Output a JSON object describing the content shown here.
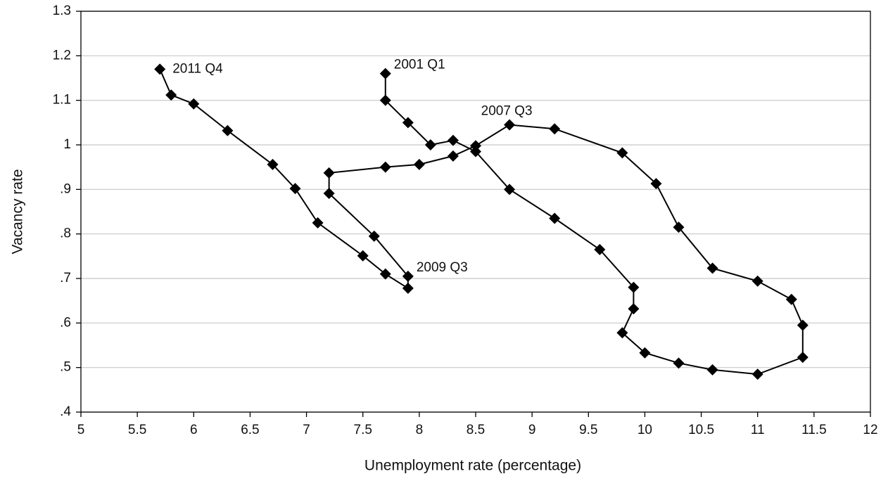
{
  "chart_data": {
    "type": "line",
    "x_label": "Unemployment rate (percentage)",
    "y_label": "Vacancy rate",
    "x": [
      7.7,
      7.7,
      7.9,
      8.1,
      8.3,
      8.5,
      8.8,
      9.2,
      9.6,
      9.9,
      9.9,
      9.8,
      10,
      10.3,
      10.6,
      11,
      11.4,
      11.4,
      11.3,
      11,
      10.6,
      10.3,
      10.1,
      9.8,
      9.2,
      8.8,
      8.5,
      8.3,
      8,
      7.7,
      7.2,
      7.2,
      7.6,
      7.9,
      7.9,
      7.7,
      7.5,
      7.1,
      6.9,
      6.7,
      6.3,
      6,
      5.8,
      5.7
    ],
    "values": [
      1.16,
      1.1,
      1.05,
      1.0,
      1.01,
      0.985,
      0.9,
      0.835,
      0.765,
      0.68,
      0.632,
      0.578,
      0.533,
      0.51,
      0.495,
      0.485,
      0.523,
      0.595,
      0.653,
      0.694,
      0.723,
      0.815,
      0.913,
      0.982,
      1.036,
      1.045,
      0.998,
      0.975,
      0.956,
      0.95,
      0.937,
      0.891,
      0.795,
      0.705,
      0.678,
      0.71,
      0.751,
      0.825,
      0.902,
      0.956,
      1.032,
      1.092,
      1.112,
      1.17
    ],
    "point_labels": [
      "2001 Q1",
      null,
      null,
      null,
      null,
      null,
      null,
      null,
      null,
      null,
      null,
      null,
      null,
      null,
      null,
      null,
      null,
      null,
      null,
      null,
      null,
      null,
      null,
      null,
      null,
      "2007 Q3",
      null,
      null,
      null,
      null,
      null,
      null,
      null,
      "2009 Q3",
      null,
      null,
      null,
      null,
      null,
      null,
      null,
      null,
      null,
      "2011 Q4"
    ],
    "color": "#000000",
    "xlim": [
      5,
      12
    ],
    "xticks": [
      5,
      5.5,
      6,
      6.5,
      7,
      7.5,
      8,
      8.5,
      9,
      9.5,
      10,
      10.5,
      11,
      11.5,
      12
    ],
    "ylim": [
      0.4,
      1.3
    ],
    "yticks": [
      {
        "value": 0.4,
        "label": ".4"
      },
      {
        "value": 0.5,
        "label": ".5"
      },
      {
        "value": 0.6,
        "label": ".6"
      },
      {
        "value": 0.7,
        "label": ".7"
      },
      {
        "value": 0.8,
        "label": ".8"
      },
      {
        "value": 0.9,
        "label": ".9"
      },
      1,
      1.1,
      1.2,
      1.3
    ],
    "grid": true
  }
}
